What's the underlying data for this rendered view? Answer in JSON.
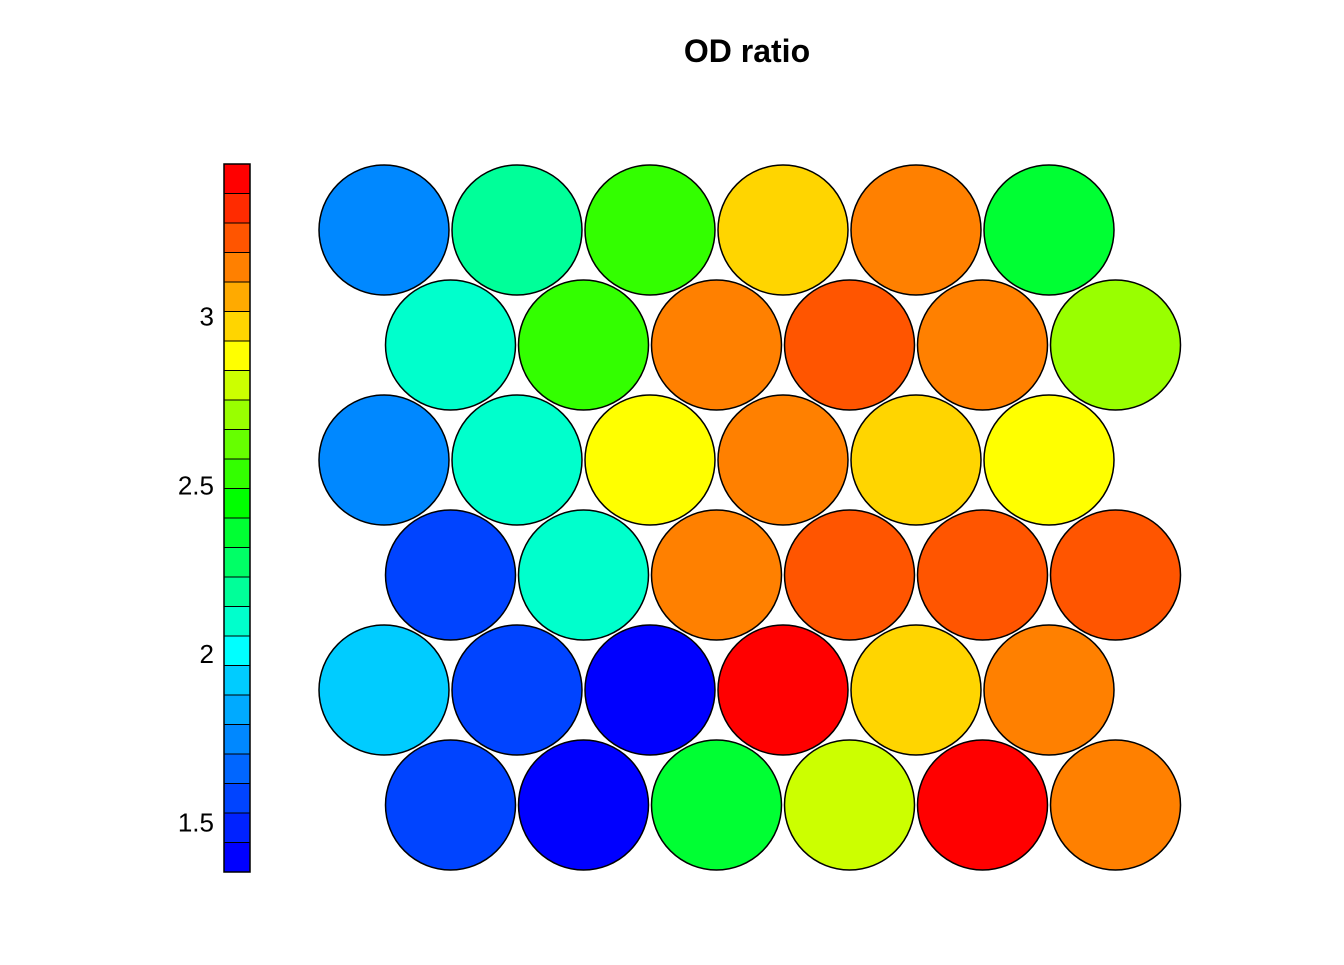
{
  "chart_data": {
    "type": "heatmap",
    "title": "OD ratio",
    "grid": "hexagonal",
    "rows": 6,
    "cols": 6,
    "values": [
      [
        1.75,
        2.2,
        2.5,
        3.0,
        3.15,
        2.4
      ],
      [
        2.1,
        2.55,
        3.15,
        3.25,
        3.15,
        2.7
      ],
      [
        1.75,
        2.1,
        2.9,
        3.15,
        3.0,
        2.9
      ],
      [
        1.6,
        2.1,
        3.15,
        3.25,
        3.25,
        3.25
      ],
      [
        1.9,
        1.6,
        1.35,
        3.4,
        3.0,
        3.15
      ],
      [
        1.6,
        1.35,
        2.35,
        2.75,
        3.4,
        3.15
      ]
    ],
    "colorbar": {
      "min": 1.35,
      "max": 3.45,
      "ticks": [
        "1.5",
        "2",
        "2.5",
        "3"
      ],
      "tick_values": [
        1.5,
        2.0,
        2.5,
        3.0
      ],
      "colors": [
        "#0000FF",
        "#0022FF",
        "#0044FF",
        "#0066FF",
        "#0088FF",
        "#00AAFF",
        "#00CCFF",
        "#00FFFF",
        "#00FFCC",
        "#00FF99",
        "#00FF66",
        "#00FF33",
        "#00FF00",
        "#33FF00",
        "#66FF00",
        "#99FF00",
        "#CCFF00",
        "#FFFF00",
        "#FFD500",
        "#FFAA00",
        "#FF8000",
        "#FF5500",
        "#FF2B00",
        "#FF0000"
      ]
    }
  }
}
